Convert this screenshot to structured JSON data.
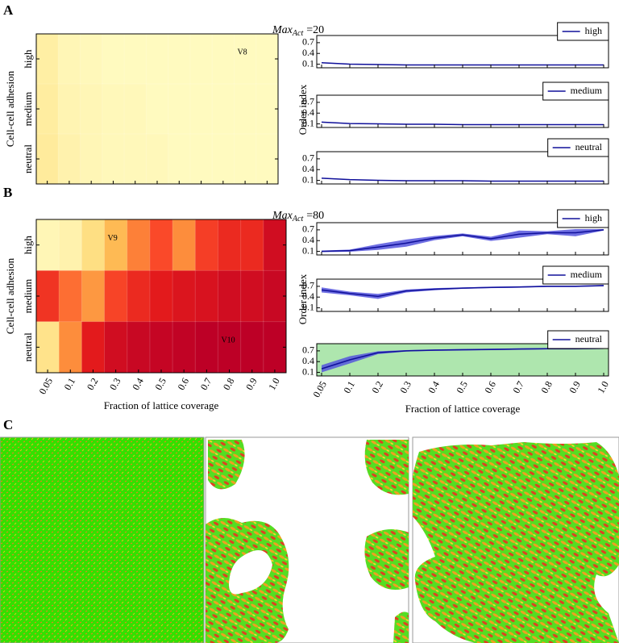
{
  "panel_labels": [
    "A",
    "B",
    "C"
  ],
  "chart_data": [
    {
      "type": "heatmap",
      "y_label": "Cell-cell adhesion",
      "rows": [
        "high",
        "medium",
        "neutral"
      ],
      "values": [
        [
          0.14,
          0.1,
          0.09,
          0.08,
          0.08,
          0.08,
          0.08,
          0.08,
          0.08,
          0.08,
          0.08
        ],
        [
          0.15,
          0.11,
          0.1,
          0.09,
          0.09,
          0.08,
          0.08,
          0.08,
          0.08,
          0.08,
          0.08
        ],
        [
          0.16,
          0.12,
          0.1,
          0.09,
          0.09,
          0.09,
          0.08,
          0.08,
          0.08,
          0.08,
          0.08
        ]
      ],
      "zlim": [
        0.05,
        0.75
      ],
      "colormap": [
        "#ffffcc",
        "#ffeda0",
        "#fed976",
        "#feb24c",
        "#fd8d3c",
        "#fc4e2a",
        "#e31a1c",
        "#bd0026"
      ],
      "annotations": [
        {
          "text": "V8",
          "row": 0,
          "col": 9
        }
      ]
    },
    {
      "type": "line",
      "title": {
        "text": "Max",
        "subscript": "Act",
        "suffix": "=20"
      },
      "y_label": "Order index",
      "ylim": [
        0,
        0.9
      ],
      "yticks": [
        0.1,
        0.4,
        0.7
      ],
      "subplots": [
        {
          "name": "high",
          "color": "#10109a",
          "band_color": "#5555dd",
          "values": [
            0.14,
            0.1,
            0.09,
            0.08,
            0.08,
            0.08,
            0.08,
            0.08,
            0.08,
            0.08,
            0.08
          ],
          "errors": [
            0.01,
            0.01,
            0.01,
            0.01,
            0.01,
            0.01,
            0.01,
            0.01,
            0.01,
            0.01,
            0.01
          ]
        },
        {
          "name": "medium",
          "color": "#10109a",
          "band_color": "#5555dd",
          "values": [
            0.15,
            0.11,
            0.1,
            0.09,
            0.09,
            0.08,
            0.08,
            0.08,
            0.08,
            0.08,
            0.08
          ],
          "errors": [
            0.01,
            0.01,
            0.01,
            0.01,
            0.01,
            0.01,
            0.01,
            0.01,
            0.01,
            0.01,
            0.01
          ]
        },
        {
          "name": "neutral",
          "color": "#10109a",
          "band_color": "#5555dd",
          "values": [
            0.16,
            0.12,
            0.1,
            0.09,
            0.09,
            0.09,
            0.08,
            0.08,
            0.08,
            0.08,
            0.08
          ],
          "errors": [
            0.01,
            0.01,
            0.01,
            0.01,
            0.01,
            0.01,
            0.01,
            0.01,
            0.01,
            0.01,
            0.01
          ]
        }
      ]
    },
    {
      "type": "heatmap",
      "y_label": "Cell-cell adhesion",
      "x_label": "Fraction of lattice coverage",
      "rows": [
        "high",
        "medium",
        "neutral"
      ],
      "categories": [
        "0.05",
        "0.1",
        "0.2",
        "0.3",
        "0.4",
        "0.5",
        "0.6",
        "0.7",
        "0.8",
        "0.9",
        "1.0"
      ],
      "values": [
        [
          0.1,
          0.12,
          0.22,
          0.33,
          0.47,
          0.56,
          0.45,
          0.58,
          0.62,
          0.62,
          0.7
        ],
        [
          0.6,
          0.5,
          0.42,
          0.57,
          0.62,
          0.65,
          0.67,
          0.68,
          0.7,
          0.7,
          0.72
        ],
        [
          0.2,
          0.45,
          0.65,
          0.7,
          0.72,
          0.73,
          0.74,
          0.75,
          0.76,
          0.76,
          0.77
        ]
      ],
      "zlim": [
        0.05,
        0.75
      ],
      "colormap": [
        "#ffffcc",
        "#ffeda0",
        "#fed976",
        "#feb24c",
        "#fd8d3c",
        "#fc4e2a",
        "#e31a1c",
        "#bd0026"
      ],
      "annotations": [
        {
          "text": "V9",
          "row": 0,
          "col": 3
        },
        {
          "text": "V10",
          "row": 2,
          "col": 8
        }
      ]
    },
    {
      "type": "line",
      "title": {
        "text": "Max",
        "subscript": "Act",
        "suffix": "=80"
      },
      "y_label": "Order index",
      "x_label": "Fraction of lattice coverage",
      "categories": [
        "0.05",
        "0.1",
        "0.2",
        "0.3",
        "0.4",
        "0.5",
        "0.6",
        "0.7",
        "0.8",
        "0.9",
        "1.0"
      ],
      "ylim": [
        0,
        0.9
      ],
      "yticks": [
        0.1,
        0.4,
        0.7
      ],
      "subplots": [
        {
          "name": "high",
          "color": "#10109a",
          "band_color": "#5555dd",
          "values": [
            0.1,
            0.12,
            0.22,
            0.33,
            0.47,
            0.56,
            0.45,
            0.58,
            0.62,
            0.62,
            0.7
          ],
          "errors": [
            0.02,
            0.03,
            0.08,
            0.1,
            0.06,
            0.04,
            0.06,
            0.1,
            0.04,
            0.1,
            0.02
          ]
        },
        {
          "name": "medium",
          "color": "#10109a",
          "band_color": "#5555dd",
          "values": [
            0.6,
            0.5,
            0.42,
            0.57,
            0.62,
            0.65,
            0.67,
            0.68,
            0.7,
            0.7,
            0.72
          ],
          "errors": [
            0.07,
            0.05,
            0.07,
            0.04,
            0.03,
            0.02,
            0.02,
            0.02,
            0.02,
            0.02,
            0.02
          ]
        },
        {
          "name": "neutral",
          "color": "#10109a",
          "band_color": "#5555dd",
          "facecolor": "#aee6ae",
          "values": [
            0.2,
            0.45,
            0.65,
            0.7,
            0.72,
            0.73,
            0.74,
            0.75,
            0.76,
            0.76,
            0.77
          ],
          "errors": [
            0.1,
            0.1,
            0.04,
            0.02,
            0.02,
            0.02,
            0.02,
            0.02,
            0.02,
            0.02,
            0.02
          ]
        }
      ]
    }
  ]
}
